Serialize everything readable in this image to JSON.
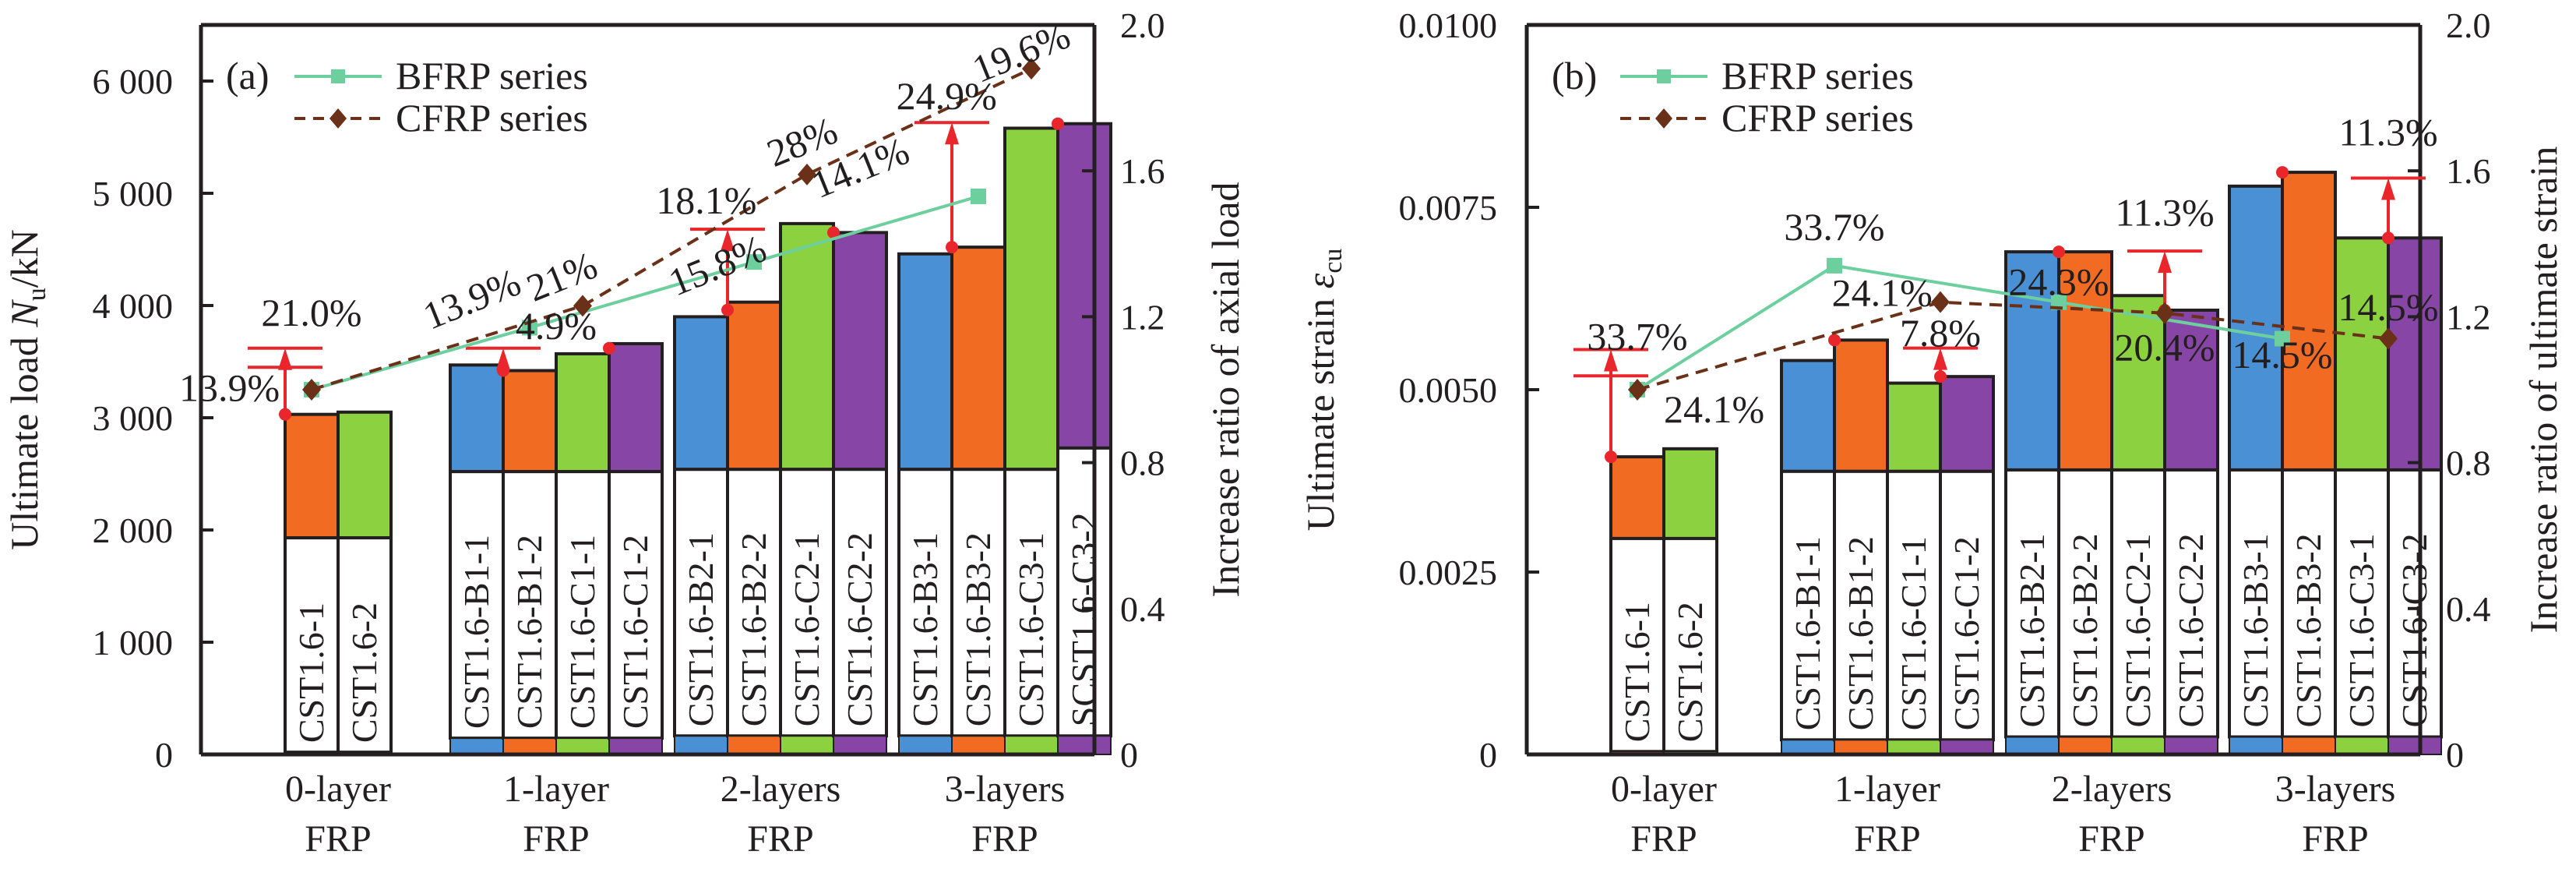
{
  "chart_data": [
    {
      "type": "bar",
      "panel_label": "(a)",
      "ylabel": "Ultimate load N_u/kN",
      "ylabel_parts": {
        "main": "Ultimate load ",
        "var": "N",
        "sub": "u",
        "unit": "/kN"
      },
      "y2label": "Increase ratio of axial load",
      "ylim": [
        0,
        6500
      ],
      "y2lim": [
        0,
        2.0
      ],
      "yticks": [
        0,
        1000,
        2000,
        3000,
        4000,
        5000,
        6000
      ],
      "ytick_labels": [
        "0",
        "1 000",
        "2 000",
        "3 000",
        "4 000",
        "5 000",
        "6 000"
      ],
      "y2ticks": [
        0,
        0.4,
        0.8,
        1.2,
        1.6,
        2.0
      ],
      "y2tick_labels": [
        "0",
        "0.4",
        "0.8",
        "1.2",
        "1.6",
        "2.0"
      ],
      "categories": [
        {
          "label_line1": "0-layer",
          "label_line2": "FRP"
        },
        {
          "label_line1": "1-layer",
          "label_line2": "FRP"
        },
        {
          "label_line1": "2-layers",
          "label_line2": "FRP"
        },
        {
          "label_line1": "3-layers",
          "label_line2": "FRP"
        }
      ],
      "bars": [
        {
          "group": 0,
          "slot": 1,
          "name": "CST1.6-1",
          "value": 3030,
          "color": "orange",
          "label_box_top": 1930,
          "base_strip": 20
        },
        {
          "group": 0,
          "slot": 2,
          "name": "CST1.6-2",
          "value": 3050,
          "color": "green",
          "label_box_top": 1930,
          "base_strip": 20
        },
        {
          "group": 1,
          "slot": 0,
          "name": "CST1.6-B1-1",
          "value": 3470,
          "color": "blue",
          "label_box_top": 2520,
          "base_strip": 145
        },
        {
          "group": 1,
          "slot": 1,
          "name": "CST1.6-B1-2",
          "value": 3420,
          "color": "orange",
          "label_box_top": 2520,
          "base_strip": 145
        },
        {
          "group": 1,
          "slot": 2,
          "name": "CST1.6-C1-1",
          "value": 3570,
          "color": "green",
          "label_box_top": 2520,
          "base_strip": 145
        },
        {
          "group": 1,
          "slot": 3,
          "name": "CST1.6-C1-2",
          "value": 3660,
          "color": "purple",
          "label_box_top": 2520,
          "base_strip": 145
        },
        {
          "group": 2,
          "slot": 0,
          "name": "CST1.6-B2-1",
          "value": 3900,
          "color": "blue",
          "label_box_top": 2540,
          "base_strip": 165
        },
        {
          "group": 2,
          "slot": 1,
          "name": "CST1.6-B2-2",
          "value": 4030,
          "color": "orange",
          "label_box_top": 2540,
          "base_strip": 165
        },
        {
          "group": 2,
          "slot": 2,
          "name": "CST1.6-C2-1",
          "value": 4730,
          "color": "green",
          "label_box_top": 2540,
          "base_strip": 165
        },
        {
          "group": 2,
          "slot": 3,
          "name": "CST1.6-C2-2",
          "value": 4650,
          "color": "purple",
          "label_box_top": 2540,
          "base_strip": 165
        },
        {
          "group": 3,
          "slot": 0,
          "name": "CST1.6-B3-1",
          "value": 4460,
          "color": "blue",
          "label_box_top": 2540,
          "base_strip": 165
        },
        {
          "group": 3,
          "slot": 1,
          "name": "CST1.6-B3-2",
          "value": 4520,
          "color": "orange",
          "label_box_top": 2540,
          "base_strip": 165
        },
        {
          "group": 3,
          "slot": 2,
          "name": "CST1.6-C3-1",
          "value": 5580,
          "color": "green",
          "label_box_top": 2540,
          "base_strip": 165
        },
        {
          "group": 3,
          "slot": 3,
          "name": "SCST1.6-C3-2",
          "value": 5620,
          "color": "purple",
          "label_box_top": 2730,
          "base_strip": 165
        }
      ],
      "series": [
        {
          "name": "BFRP series",
          "style": "solid",
          "marker": "square",
          "color_key": "bfrp",
          "x_slots": [
            1.5,
            1.5,
            1.5,
            1.5
          ],
          "values": [
            1.0,
            1.17,
            1.35,
            1.53
          ]
        },
        {
          "name": "CFRP series",
          "style": "dashed",
          "marker": "diamond",
          "color_key": "cfrp",
          "x_slots": [
            1.5,
            2.5,
            2.5,
            2.5
          ],
          "values": [
            1.0,
            1.23,
            1.59,
            1.88
          ]
        }
      ],
      "annotations": [
        {
          "text": "21.0%",
          "group": 0,
          "slot": 1.5,
          "y": 3820,
          "anchor": "middle",
          "rotate": 0
        },
        {
          "text": "13.9%",
          "group": 0,
          "slot": 0.9,
          "y": 3150,
          "anchor": "end",
          "rotate": 0
        },
        {
          "text": "13.9%",
          "group": 1,
          "slot": 0.5,
          "y": 3950,
          "anchor": "middle",
          "rotate": -22
        },
        {
          "text": "21%",
          "group": 1,
          "slot": 2.2,
          "y": 4150,
          "anchor": "middle",
          "rotate": -22
        },
        {
          "text": "4.9%",
          "group": 1,
          "slot": 2.0,
          "y": 3700,
          "anchor": "middle",
          "rotate": 0
        },
        {
          "text": "18.1%",
          "group": 2,
          "slot": 0.6,
          "y": 4820,
          "anchor": "middle",
          "rotate": 0
        },
        {
          "text": "15.8%",
          "group": 2,
          "slot": 0.9,
          "y": 4250,
          "anchor": "middle",
          "rotate": -22
        },
        {
          "text": "28%",
          "group": 2,
          "slot": 2.5,
          "y": 5350,
          "anchor": "middle",
          "rotate": -22
        },
        {
          "text": "14.1%",
          "group": 2,
          "slot": 3.6,
          "y": 5120,
          "anchor": "middle",
          "rotate": -22
        },
        {
          "text": "24.9%",
          "group": 3,
          "slot": 0.9,
          "y": 5750,
          "anchor": "middle",
          "rotate": 0
        },
        {
          "text": "19.6%",
          "group": 3,
          "slot": 2.4,
          "y": 6150,
          "anchor": "middle",
          "rotate": -22
        }
      ],
      "arrows": [
        {
          "group": 0,
          "slot": 1,
          "from": 3030,
          "to": 3620,
          "caps": [
            3620,
            3450
          ]
        },
        {
          "group": 1,
          "slot": 1,
          "from": 3420,
          "to": 3620,
          "caps": [
            3620
          ]
        },
        {
          "group": 2,
          "slot": 1,
          "from": 3960,
          "to": 4680,
          "caps": [
            4680
          ]
        },
        {
          "group": 3,
          "slot": 1,
          "from": 4520,
          "to": 5630,
          "caps": [
            5630
          ]
        }
      ],
      "red_dots": [
        {
          "group": 0,
          "slot": 1,
          "v": 3030
        },
        {
          "group": 1,
          "slot": 1,
          "v": 3420
        },
        {
          "group": 1,
          "slot": 3,
          "v": 3620
        },
        {
          "group": 2,
          "slot": 1,
          "v": 3960
        },
        {
          "group": 2,
          "slot": 3,
          "v": 4650
        },
        {
          "group": 3,
          "slot": 1,
          "v": 4520
        },
        {
          "group": 3,
          "slot": 3,
          "v": 5620
        }
      ],
      "legend": {
        "position": "top-left",
        "entries": [
          "BFRP series",
          "CFRP series"
        ]
      }
    },
    {
      "type": "bar",
      "panel_label": "(b)",
      "ylabel": "Ultimate strain ε_cu",
      "ylabel_parts": {
        "main": "Ultimate strain ",
        "var": "ε",
        "sub": "cu",
        "unit": ""
      },
      "y2label": "Increase ratio of ultimate strain",
      "ylim": [
        0,
        0.01
      ],
      "y2lim": [
        0,
        2.0
      ],
      "yticks": [
        0,
        0.0025,
        0.005,
        0.0075,
        0.01
      ],
      "ytick_labels": [
        "0",
        "0.0025",
        "0.0050",
        "0.0075",
        "0.0100"
      ],
      "y2ticks": [
        0,
        0.4,
        0.8,
        1.2,
        1.6,
        2.0
      ],
      "y2tick_labels": [
        "0",
        "0.4",
        "0.8",
        "1.2",
        "1.6",
        "2.0"
      ],
      "categories": [
        {
          "label_line1": "0-layer",
          "label_line2": "FRP"
        },
        {
          "label_line1": "1-layer",
          "label_line2": "FRP"
        },
        {
          "label_line1": "2-layers",
          "label_line2": "FRP"
        },
        {
          "label_line1": "3-layers",
          "label_line2": "FRP"
        }
      ],
      "bars": [
        {
          "group": 0,
          "slot": 1,
          "name": "CST1.6-1",
          "value": 0.00408,
          "color": "orange",
          "label_box_top": 0.00296,
          "base_strip": 4e-05
        },
        {
          "group": 0,
          "slot": 2,
          "name": "CST1.6-2",
          "value": 0.00419,
          "color": "green",
          "label_box_top": 0.00296,
          "base_strip": 4e-05
        },
        {
          "group": 1,
          "slot": 0,
          "name": "CST1.6-B1-1",
          "value": 0.0054,
          "color": "blue",
          "label_box_top": 0.00388,
          "base_strip": 0.0002
        },
        {
          "group": 1,
          "slot": 1,
          "name": "CST1.6-B1-2",
          "value": 0.00568,
          "color": "orange",
          "label_box_top": 0.00388,
          "base_strip": 0.0002
        },
        {
          "group": 1,
          "slot": 2,
          "name": "CST1.6-C1-1",
          "value": 0.00509,
          "color": "green",
          "label_box_top": 0.00388,
          "base_strip": 0.0002
        },
        {
          "group": 1,
          "slot": 3,
          "name": "CST1.6-C1-2",
          "value": 0.00518,
          "color": "purple",
          "label_box_top": 0.00388,
          "base_strip": 0.0002
        },
        {
          "group": 2,
          "slot": 0,
          "name": "CST1.6-B2-1",
          "value": 0.00689,
          "color": "blue",
          "label_box_top": 0.0039,
          "base_strip": 0.00024
        },
        {
          "group": 2,
          "slot": 1,
          "name": "CST1.6-B2-2",
          "value": 0.00689,
          "color": "orange",
          "label_box_top": 0.0039,
          "base_strip": 0.00024
        },
        {
          "group": 2,
          "slot": 2,
          "name": "CST1.6-C2-1",
          "value": 0.00629,
          "color": "green",
          "label_box_top": 0.0039,
          "base_strip": 0.00024
        },
        {
          "group": 2,
          "slot": 3,
          "name": "CST1.6-C2-2",
          "value": 0.00609,
          "color": "purple",
          "label_box_top": 0.0039,
          "base_strip": 0.00024
        },
        {
          "group": 3,
          "slot": 0,
          "name": "CST1.6-B3-1",
          "value": 0.00779,
          "color": "blue",
          "label_box_top": 0.0039,
          "base_strip": 0.00024
        },
        {
          "group": 3,
          "slot": 1,
          "name": "CST1.6-B3-2",
          "value": 0.00798,
          "color": "orange",
          "label_box_top": 0.0039,
          "base_strip": 0.00024
        },
        {
          "group": 3,
          "slot": 2,
          "name": "CST1.6-C3-1",
          "value": 0.00708,
          "color": "green",
          "label_box_top": 0.0039,
          "base_strip": 0.00024
        },
        {
          "group": 3,
          "slot": 3,
          "name": "CST1.6-C3-2",
          "value": 0.00708,
          "color": "purple",
          "label_box_top": 0.0039,
          "base_strip": 0.00024
        }
      ],
      "series": [
        {
          "name": "BFRP series",
          "style": "solid",
          "marker": "square",
          "color_key": "bfrp",
          "x_slots": [
            1.5,
            1.0,
            1.0,
            1.0
          ],
          "values": [
            1.0,
            1.34,
            1.24,
            1.14
          ]
        },
        {
          "name": "CFRP series",
          "style": "dashed",
          "marker": "diamond",
          "color_key": "cfrp",
          "x_slots": [
            1.5,
            3.0,
            3.0,
            3.0
          ],
          "values": [
            1.0,
            1.24,
            1.21,
            1.14
          ]
        }
      ],
      "annotations": [
        {
          "text": "33.7%",
          "group": 0,
          "slot": 1.5,
          "y": 0.00555,
          "anchor": "middle",
          "rotate": 0
        },
        {
          "text": "24.1%",
          "group": 0,
          "slot": 2.0,
          "y": 0.00455,
          "anchor": "start",
          "rotate": 0
        },
        {
          "text": "33.7%",
          "group": 1,
          "slot": 1.0,
          "y": 0.00705,
          "anchor": "middle",
          "rotate": 0
        },
        {
          "text": "24.1%",
          "group": 1,
          "slot": 1.9,
          "y": 0.00615,
          "anchor": "middle",
          "rotate": 0
        },
        {
          "text": "7.8%",
          "group": 1,
          "slot": 3.0,
          "y": 0.0056,
          "anchor": "middle",
          "rotate": 0
        },
        {
          "text": "24.3%",
          "group": 2,
          "slot": 1.0,
          "y": 0.0063,
          "anchor": "middle",
          "rotate": 0
        },
        {
          "text": "11.3%",
          "group": 2,
          "slot": 3.0,
          "y": 0.00725,
          "anchor": "middle",
          "rotate": 0
        },
        {
          "text": "20.4%",
          "group": 2,
          "slot": 3.0,
          "y": 0.0054,
          "anchor": "middle",
          "rotate": 0
        },
        {
          "text": "14.5%",
          "group": 3,
          "slot": 1.0,
          "y": 0.0053,
          "anchor": "middle",
          "rotate": 0
        },
        {
          "text": "11.3%",
          "group": 3,
          "slot": 3.0,
          "y": 0.00835,
          "anchor": "middle",
          "rotate": 0
        },
        {
          "text": "14.5%",
          "group": 3,
          "slot": 3.0,
          "y": 0.00595,
          "anchor": "middle",
          "rotate": 0
        }
      ],
      "arrows": [
        {
          "group": 0,
          "slot": 1,
          "from": 0.00408,
          "to": 0.00555,
          "caps": [
            0.00555,
            0.00519
          ]
        },
        {
          "group": 2,
          "slot": 3,
          "from": 0.00609,
          "to": 0.0069,
          "caps": [
            0.0069
          ]
        },
        {
          "group": 1,
          "slot": 3,
          "from": 0.00518,
          "to": 0.00557,
          "caps": [
            0.00557
          ]
        },
        {
          "group": 3,
          "slot": 3,
          "from": 0.00708,
          "to": 0.0079,
          "caps": [
            0.0079
          ]
        }
      ],
      "red_dots": [
        {
          "group": 0,
          "slot": 1,
          "v": 0.00408
        },
        {
          "group": 1,
          "slot": 1,
          "v": 0.00568
        },
        {
          "group": 1,
          "slot": 3,
          "v": 0.00518
        },
        {
          "group": 2,
          "slot": 1,
          "v": 0.00689
        },
        {
          "group": 2,
          "slot": 3,
          "v": 0.00609
        },
        {
          "group": 3,
          "slot": 1,
          "v": 0.00798
        },
        {
          "group": 3,
          "slot": 3,
          "v": 0.00708
        }
      ],
      "legend": {
        "position": "top-left",
        "entries": [
          "BFRP series",
          "CFRP series"
        ]
      }
    }
  ],
  "colors": {
    "blue": "#4a90d4",
    "orange": "#f26b22",
    "green": "#8cd13f",
    "purple": "#8746a5",
    "bfrp": "#6dcf9e",
    "cfrp": "#6b3018",
    "red": "#e8262b",
    "axis": "#231f20"
  }
}
